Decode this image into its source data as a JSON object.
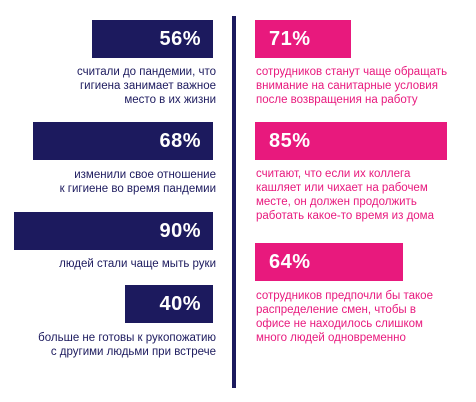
{
  "colors": {
    "navy": "#1c1a5e",
    "pink": "#e8197d"
  },
  "left": [
    {
      "value": "56%",
      "lines": [
        "считали до пандемии, что",
        "гигиена занимает важное",
        "место в их жизни"
      ]
    },
    {
      "value": "68%",
      "lines": [
        "изменили свое отношение",
        "к гигиене во время пандемии"
      ]
    },
    {
      "value": "90%",
      "lines": [
        "людей стали чаще мыть руки"
      ]
    },
    {
      "value": "40%",
      "lines": [
        "больше не готовы к рукопожатию",
        "с другими людьми при встрече"
      ]
    }
  ],
  "right": [
    {
      "value": "71%",
      "lines": [
        "сотрудников станут чаще обращать",
        "внимание на санитарные условия",
        "после возвращения на работу"
      ]
    },
    {
      "value": "85%",
      "lines": [
        "считают, что если их коллега",
        "кашляет или чихает на рабочем",
        "месте, он должен продолжить",
        "работать какое-то время из дома"
      ]
    },
    {
      "value": "64%",
      "lines": [
        "сотрудников предпочли бы такое",
        "распределение смен, чтобы в",
        "офисе не находилось слишком",
        "много людей одновременно"
      ]
    }
  ]
}
